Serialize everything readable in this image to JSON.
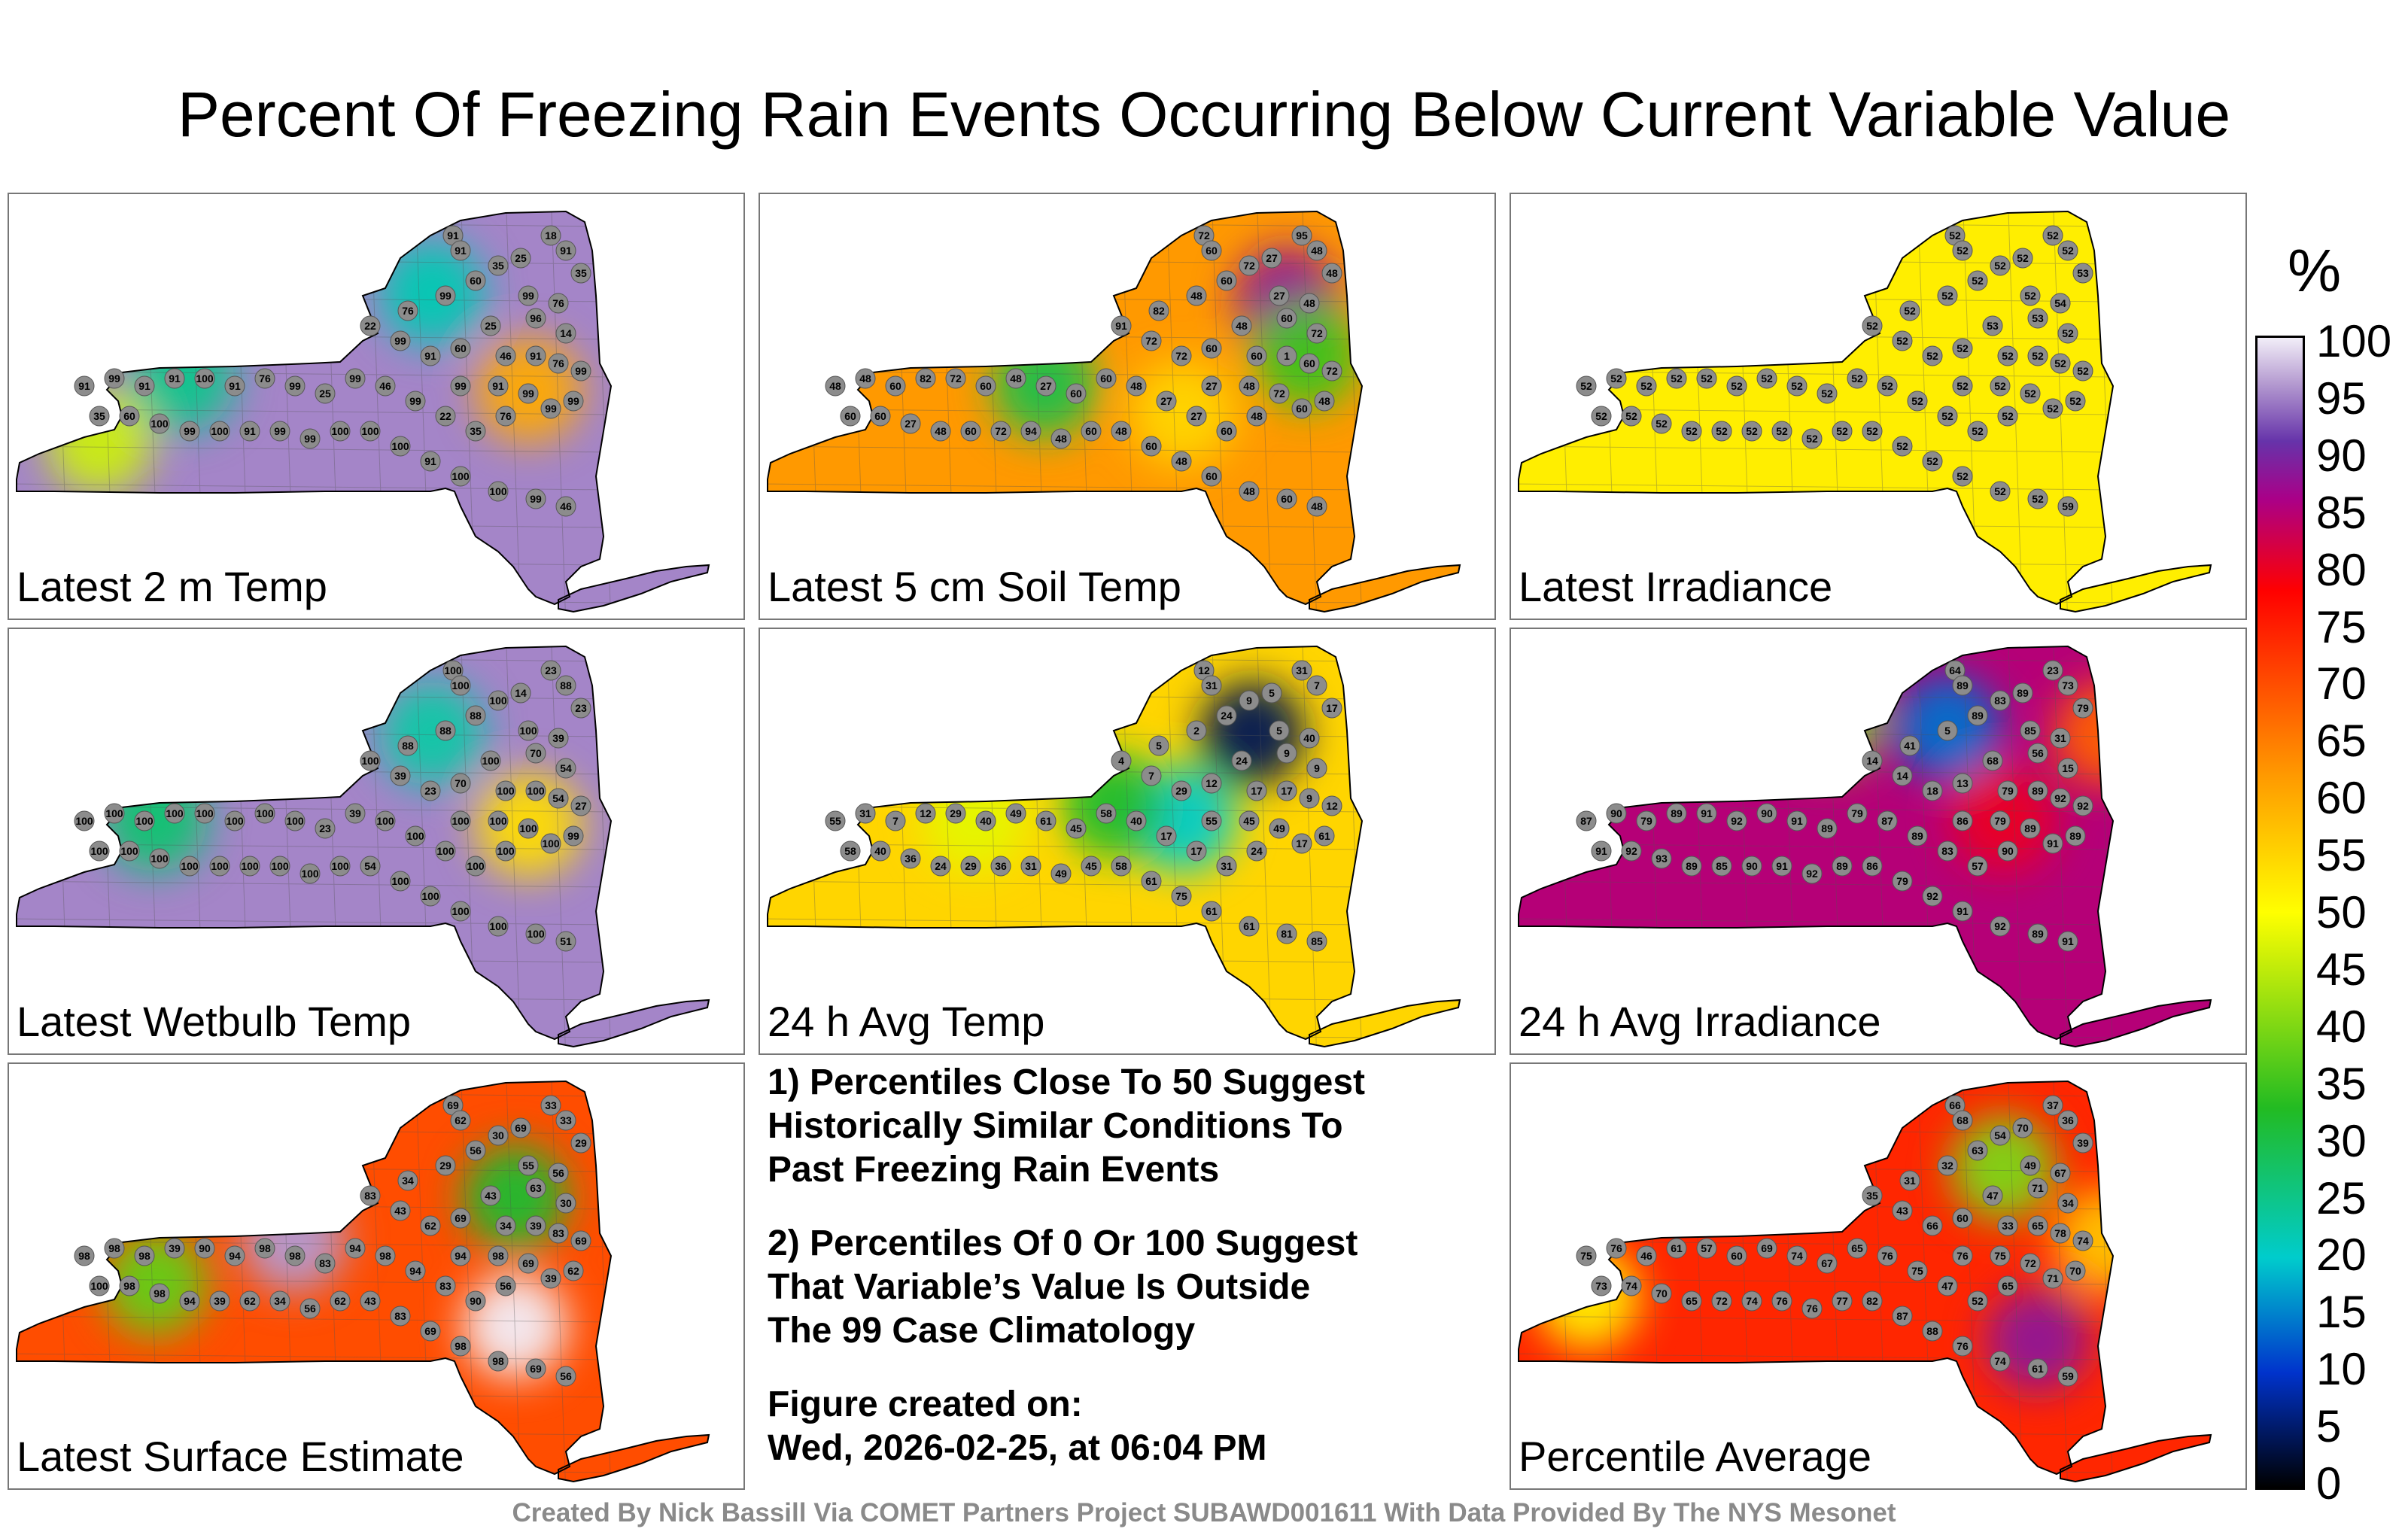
{
  "title": "Percent Of Freezing Rain Events Occurring Below Current Variable Value",
  "notes": {
    "note1": "1) Percentiles Close To 50 Suggest\nHistorically Similar Conditions To\nPast Freezing Rain Events",
    "note2": "2) Percentiles Of 0 Or 100 Suggest\nThat Variable’s Value Is Outside\nThe 99 Case Climatology",
    "created": "Figure created on:\nWed, 2026-02-25, at 06:04 PM"
  },
  "credit": "Created By Nick Bassill Via COMET Partners Project SUBAWD001611 With Data Provided By The NYS Mesonet",
  "colorbar": {
    "unit": "%",
    "ticks": [
      "100",
      "95",
      "90",
      "85",
      "80",
      "75",
      "70",
      "65",
      "60",
      "55",
      "50",
      "45",
      "40",
      "35",
      "30",
      "25",
      "20",
      "15",
      "10",
      "5",
      "0"
    ],
    "stops": [
      {
        "pct": 0,
        "color": "#000000"
      },
      {
        "pct": 10,
        "color": "#0033cc"
      },
      {
        "pct": 20,
        "color": "#00cccc"
      },
      {
        "pct": 33,
        "color": "#22bb22"
      },
      {
        "pct": 50,
        "color": "#ffff00"
      },
      {
        "pct": 62,
        "color": "#ff9900"
      },
      {
        "pct": 78,
        "color": "#ff0000"
      },
      {
        "pct": 86,
        "color": "#aa0088"
      },
      {
        "pct": 91,
        "color": "#6633aa"
      },
      {
        "pct": 96,
        "color": "#b49ad0"
      },
      {
        "pct": 100,
        "color": "#f2eef8"
      }
    ]
  },
  "chart_data": [
    {
      "type": "heatmap",
      "title": "Latest 2 m Temp",
      "base": 95,
      "blobs": [
        {
          "x": 0.24,
          "y": 0.58,
          "v": 25
        },
        {
          "x": 0.6,
          "y": 0.28,
          "v": 22
        },
        {
          "x": 0.12,
          "y": 0.8,
          "v": 46
        },
        {
          "x": 0.74,
          "y": 0.62,
          "v": 60
        }
      ],
      "station_values": [
        91,
        91,
        60,
        35,
        25,
        18,
        91,
        99,
        96,
        76,
        35,
        14,
        22,
        76,
        99,
        99,
        91,
        60,
        25,
        46,
        91,
        76,
        99,
        99,
        99,
        91,
        99,
        99,
        76,
        35,
        22,
        99,
        46,
        99,
        25,
        99,
        76,
        91,
        100,
        91,
        91,
        99,
        91,
        35,
        60,
        100,
        99,
        100,
        91,
        99,
        99,
        100,
        100,
        100,
        91,
        100,
        100,
        99,
        46
      ]
    },
    {
      "type": "heatmap",
      "title": "Latest 5 cm Soil Temp",
      "base": 62,
      "blobs": [
        {
          "x": 0.4,
          "y": 0.6,
          "v": 30
        },
        {
          "x": 0.75,
          "y": 0.3,
          "v": 88
        },
        {
          "x": 0.78,
          "y": 0.5,
          "v": 35
        },
        {
          "x": 0.6,
          "y": 0.7,
          "v": 55
        }
      ],
      "station_values": [
        72,
        60,
        60,
        72,
        27,
        95,
        48,
        27,
        60,
        48,
        48,
        72,
        91,
        82,
        48,
        72,
        72,
        60,
        48,
        60,
        1,
        60,
        72,
        48,
        27,
        48,
        72,
        60,
        48,
        60,
        27,
        27,
        48,
        60,
        60,
        27,
        48,
        60,
        72,
        82,
        60,
        48,
        48,
        60,
        60,
        27,
        48,
        60,
        72,
        94,
        48,
        60,
        48,
        60,
        48,
        60,
        48,
        60,
        48
      ]
    },
    {
      "type": "heatmap",
      "title": "Latest Irradiance",
      "base": 52,
      "blobs": [],
      "station_values": [
        52,
        52,
        52,
        52,
        52,
        52,
        52,
        52,
        53,
        54,
        53,
        52,
        52,
        52,
        52,
        52,
        52,
        52,
        53,
        52,
        52,
        52,
        52,
        52,
        52,
        52,
        52,
        52,
        52,
        52,
        52,
        52,
        52,
        52,
        52,
        52,
        52,
        52,
        52,
        52,
        52,
        52,
        52,
        52,
        52,
        52,
        52,
        52,
        52,
        52,
        52,
        52,
        52,
        52,
        52,
        52,
        52,
        52,
        59
      ]
    },
    {
      "type": "heatmap",
      "title": "Latest Wetbulb Temp",
      "base": 95,
      "blobs": [
        {
          "x": 0.2,
          "y": 0.6,
          "v": 27
        },
        {
          "x": 0.6,
          "y": 0.3,
          "v": 23
        },
        {
          "x": 0.74,
          "y": 0.62,
          "v": 54
        }
      ],
      "station_values": [
        100,
        100,
        88,
        100,
        14,
        23,
        88,
        100,
        70,
        39,
        23,
        54,
        100,
        88,
        88,
        39,
        23,
        70,
        100,
        100,
        100,
        54,
        27,
        99,
        100,
        100,
        100,
        100,
        100,
        100,
        100,
        100,
        100,
        39,
        23,
        100,
        100,
        100,
        100,
        100,
        100,
        100,
        100,
        100,
        100,
        100,
        100,
        100,
        100,
        100,
        100,
        100,
        54,
        100,
        100,
        100,
        100,
        100,
        51
      ]
    },
    {
      "type": "heatmap",
      "title": "24 h Avg Temp",
      "base": 55,
      "blobs": [
        {
          "x": 0.7,
          "y": 0.3,
          "v": 4
        },
        {
          "x": 0.6,
          "y": 0.6,
          "v": 20
        },
        {
          "x": 0.5,
          "y": 0.55,
          "v": 32
        },
        {
          "x": 0.3,
          "y": 0.6,
          "v": 48
        }
      ],
      "station_values": [
        12,
        31,
        24,
        9,
        5,
        31,
        7,
        5,
        9,
        40,
        17,
        9,
        4,
        5,
        2,
        7,
        29,
        12,
        24,
        17,
        17,
        9,
        12,
        61,
        55,
        45,
        49,
        17,
        24,
        31,
        17,
        17,
        40,
        58,
        45,
        61,
        49,
        40,
        29,
        12,
        7,
        31,
        55,
        58,
        40,
        36,
        24,
        29,
        36,
        31,
        49,
        45,
        58,
        61,
        75,
        61,
        61,
        81,
        85
      ]
    },
    {
      "type": "heatmap",
      "title": "24 h Avg Irradiance",
      "base": 85,
      "blobs": [
        {
          "x": 0.62,
          "y": 0.28,
          "v": 14
        },
        {
          "x": 0.45,
          "y": 0.25,
          "v": 40
        },
        {
          "x": 0.85,
          "y": 0.3,
          "v": 68
        },
        {
          "x": 0.7,
          "y": 0.6,
          "v": 80
        }
      ],
      "station_values": [
        64,
        89,
        89,
        83,
        89,
        23,
        73,
        85,
        56,
        31,
        79,
        15,
        14,
        41,
        5,
        14,
        18,
        13,
        68,
        79,
        89,
        92,
        92,
        89,
        86,
        79,
        89,
        91,
        90,
        57,
        83,
        89,
        87,
        79,
        89,
        91,
        90,
        92,
        91,
        89,
        79,
        90,
        87,
        91,
        92,
        93,
        89,
        85,
        90,
        91,
        92,
        89,
        86,
        79,
        92,
        91,
        92,
        89,
        91
      ]
    },
    {
      "type": "heatmap",
      "title": "Latest Surface Estimate",
      "base": 70,
      "blobs": [
        {
          "x": 0.72,
          "y": 0.4,
          "v": 32
        },
        {
          "x": 0.2,
          "y": 0.7,
          "v": 38
        },
        {
          "x": 0.4,
          "y": 0.55,
          "v": 96
        },
        {
          "x": 0.72,
          "y": 0.85,
          "v": 100
        }
      ],
      "station_values": [
        69,
        62,
        56,
        30,
        69,
        33,
        33,
        55,
        63,
        56,
        29,
        30,
        83,
        34,
        29,
        43,
        62,
        69,
        43,
        34,
        39,
        83,
        69,
        62,
        94,
        98,
        69,
        39,
        56,
        90,
        83,
        94,
        98,
        94,
        83,
        98,
        98,
        94,
        90,
        39,
        98,
        98,
        98,
        100,
        98,
        98,
        94,
        39,
        62,
        34,
        56,
        62,
        43,
        83,
        69,
        98,
        98,
        69,
        56
      ]
    },
    {
      "type": "heatmap",
      "title": "Percentile Average",
      "base": 74,
      "blobs": [
        {
          "x": 0.7,
          "y": 0.3,
          "v": 40
        },
        {
          "x": 0.85,
          "y": 0.55,
          "v": 57
        },
        {
          "x": 0.1,
          "y": 0.75,
          "v": 52
        },
        {
          "x": 0.75,
          "y": 0.9,
          "v": 88
        }
      ],
      "station_values": [
        66,
        68,
        63,
        54,
        70,
        37,
        36,
        49,
        71,
        67,
        39,
        34,
        35,
        31,
        32,
        43,
        66,
        60,
        47,
        33,
        65,
        78,
        74,
        70,
        76,
        75,
        72,
        71,
        65,
        52,
        47,
        75,
        76,
        65,
        67,
        74,
        69,
        60,
        57,
        61,
        46,
        76,
        75,
        73,
        74,
        70,
        65,
        72,
        74,
        76,
        76,
        77,
        82,
        87,
        88,
        76,
        74,
        61,
        59
      ]
    }
  ]
}
